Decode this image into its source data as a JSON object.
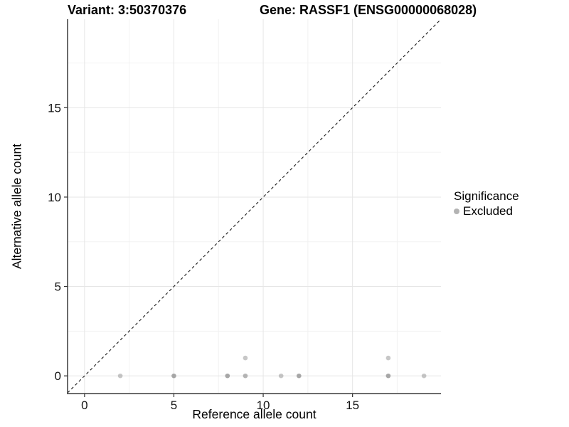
{
  "header": {
    "variant_title": "Variant: 3:50370376",
    "gene_title": "Gene: RASSF1 (ENSG00000068028)"
  },
  "chart_data": {
    "type": "scatter",
    "xlabel": "Reference allele count",
    "ylabel": "Alternative allele count",
    "xlim": [
      -0.95,
      19.95
    ],
    "ylim": [
      -0.95,
      19.95
    ],
    "x_major_ticks": [
      0,
      5,
      10,
      15
    ],
    "x_tick_labels": [
      "0",
      "5",
      "10",
      "15"
    ],
    "y_major_ticks": [
      0,
      5,
      10,
      15
    ],
    "y_tick_labels": [
      "0",
      "5",
      "10",
      "15"
    ],
    "x_minor_ticks": [
      2.5,
      7.5,
      12.5,
      17.5
    ],
    "y_minor_ticks": [
      2.5,
      7.5,
      12.5,
      17.5
    ],
    "grid": true,
    "identity_line": {
      "style": "dashed",
      "from": [
        -0.95,
        -0.95
      ],
      "to": [
        19.95,
        19.95
      ],
      "color": "#1a1a1a"
    },
    "series": [
      {
        "name": "Excluded",
        "color": "#8f8f8f",
        "points": [
          {
            "x": 2,
            "y": 0,
            "alpha": 0.5
          },
          {
            "x": 5,
            "y": 0,
            "alpha": 0.78
          },
          {
            "x": 8,
            "y": 0,
            "alpha": 0.78
          },
          {
            "x": 9,
            "y": 0,
            "alpha": 0.65
          },
          {
            "x": 9,
            "y": 1,
            "alpha": 0.5
          },
          {
            "x": 11,
            "y": 0,
            "alpha": 0.5
          },
          {
            "x": 12,
            "y": 0,
            "alpha": 0.78
          },
          {
            "x": 17,
            "y": 0,
            "alpha": 0.78
          },
          {
            "x": 17,
            "y": 1,
            "alpha": 0.5
          },
          {
            "x": 19,
            "y": 0,
            "alpha": 0.5
          }
        ]
      }
    ],
    "legend": {
      "position": "right",
      "title": "Significance",
      "items": [
        {
          "label": "Excluded",
          "color": "#b3b3b3"
        }
      ]
    },
    "colors": {
      "grid_major": "#e6e6e6",
      "grid_minor": "#f2f2f2",
      "axis_line": "#3a3a3a",
      "tick_mark": "#333333",
      "tick_text": "#141414"
    }
  }
}
